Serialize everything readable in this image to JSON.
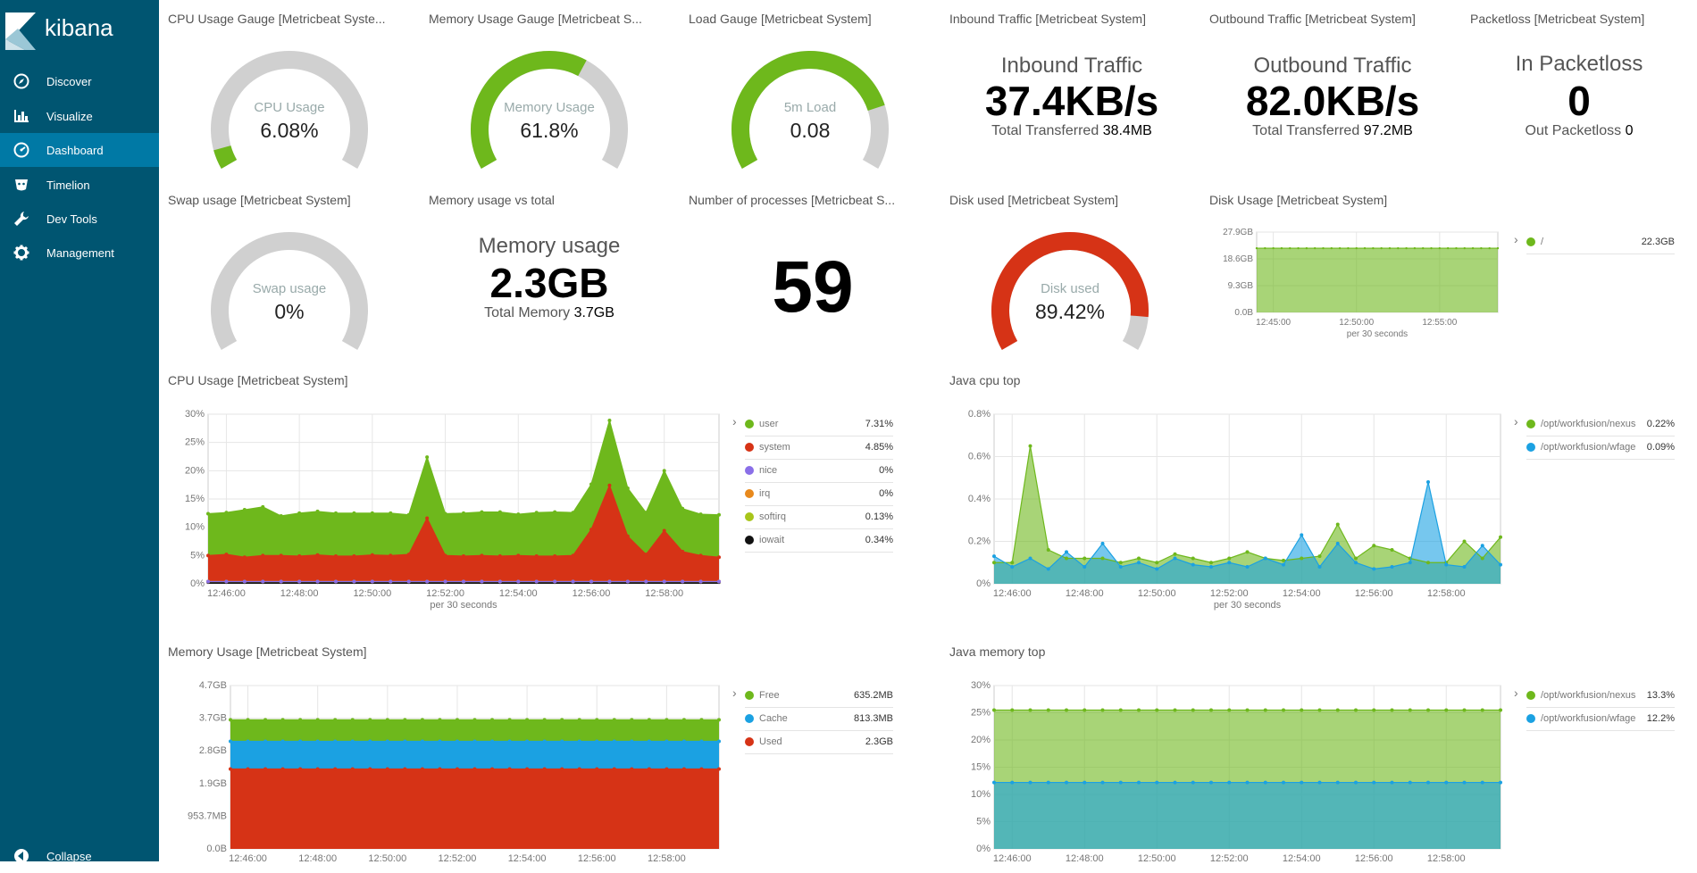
{
  "app": {
    "name": "kibana",
    "nav": [
      {
        "label": "Discover",
        "icon": "compass-icon",
        "active": false
      },
      {
        "label": "Visualize",
        "icon": "bar-chart-icon",
        "active": false
      },
      {
        "label": "Dashboard",
        "icon": "dashboard-icon",
        "active": true
      },
      {
        "label": "Timelion",
        "icon": "timelion-icon",
        "active": false
      },
      {
        "label": "Dev Tools",
        "icon": "wrench-icon",
        "active": false
      },
      {
        "label": "Management",
        "icon": "gear-icon",
        "active": false
      }
    ],
    "collapse_label": "Collapse",
    "colors": {
      "sidebar": "#005571",
      "active": "#0079a5",
      "green": "#6eb81c",
      "red": "#d63316",
      "blue": "#1ba1e2",
      "grey": "#d0d0d0"
    }
  },
  "panels": {
    "cpu_gauge": {
      "title": "CPU Usage Gauge [Metricbeat Syste...",
      "label": "CPU Usage",
      "value": "6.08%",
      "fraction": 0.0608,
      "color": "#6eb81c"
    },
    "mem_gauge": {
      "title": "Memory Usage Gauge [Metricbeat S...",
      "label": "Memory Usage",
      "value": "61.8%",
      "fraction": 0.618,
      "color": "#6eb81c"
    },
    "load_gauge": {
      "title": "Load Gauge [Metricbeat System]",
      "label": "5m Load",
      "value": "0.08",
      "fraction": 0.8,
      "color": "#6eb81c"
    },
    "inbound": {
      "title": "Inbound Traffic [Metricbeat System]",
      "label": "Inbound Traffic",
      "value": "37.4KB/s",
      "sub_label": "Total Transferred",
      "sub_value": "38.4MB"
    },
    "outbound": {
      "title": "Outbound Traffic [Metricbeat System]",
      "label": "Outbound Traffic",
      "value": "82.0KB/s",
      "sub_label": "Total Transferred",
      "sub_value": "97.2MB"
    },
    "packetloss": {
      "title": "Packetloss [Metricbeat System]",
      "label": "In Packetloss",
      "value": "0",
      "sub_label": "Out Packetloss",
      "sub_value": "0"
    },
    "swap_gauge": {
      "title": "Swap usage [Metricbeat System]",
      "label": "Swap usage",
      "value": "0%",
      "fraction": 0,
      "color": "#6eb81c"
    },
    "mem_total": {
      "title": "Memory usage vs total",
      "label": "Memory usage",
      "value": "2.3GB",
      "sub_label": "Total Memory",
      "sub_value": "3.7GB"
    },
    "processes": {
      "title": "Number of processes [Metricbeat S...",
      "value": "59"
    },
    "disk_gauge": {
      "title": "Disk used [Metricbeat System]",
      "label": "Disk used",
      "value": "89.42%",
      "fraction": 0.8942,
      "color": "#d63316"
    },
    "disk_usage": {
      "title": "Disk Usage [Metricbeat System]",
      "legend": [
        {
          "name": "/",
          "value": "22.3GB",
          "color": "#6eb81c"
        }
      ]
    },
    "cpu_usage": {
      "title": "CPU Usage [Metricbeat System]",
      "legend": [
        {
          "name": "user",
          "value": "7.31%",
          "color": "#6eb81c"
        },
        {
          "name": "system",
          "value": "4.85%",
          "color": "#d63316"
        },
        {
          "name": "nice",
          "value": "0%",
          "color": "#8a6fe8"
        },
        {
          "name": "irq",
          "value": "0%",
          "color": "#e8891c"
        },
        {
          "name": "softirq",
          "value": "0.13%",
          "color": "#a8c51a"
        },
        {
          "name": "iowait",
          "value": "0.34%",
          "color": "#111111"
        }
      ]
    },
    "java_cpu": {
      "title": "Java cpu top",
      "legend": [
        {
          "name": "/opt/workfusion/nexus",
          "value": "0.22%",
          "color": "#6eb81c"
        },
        {
          "name": "/opt/workfusion/wfage",
          "value": "0.09%",
          "color": "#1ba1e2"
        }
      ]
    },
    "memory_usage": {
      "title": "Memory Usage [Metricbeat System]",
      "legend": [
        {
          "name": "Free",
          "value": "635.2MB",
          "color": "#6eb81c"
        },
        {
          "name": "Cache",
          "value": "813.3MB",
          "color": "#1ba1e2"
        },
        {
          "name": "Used",
          "value": "2.3GB",
          "color": "#d63316"
        }
      ]
    },
    "java_mem": {
      "title": "Java memory top",
      "legend": [
        {
          "name": "/opt/workfusion/nexus",
          "value": "13.3%",
          "color": "#6eb81c"
        },
        {
          "name": "/opt/workfusion/wfage",
          "value": "12.2%",
          "color": "#1ba1e2"
        }
      ]
    }
  },
  "chart_data": [
    {
      "id": "disk",
      "type": "area",
      "x": [
        "12:44:00",
        "12:44:30",
        "12:45:00",
        "12:45:30",
        "12:46:00",
        "12:46:30",
        "12:47:00",
        "12:47:30",
        "12:48:00",
        "12:48:30",
        "12:49:00",
        "12:49:30",
        "12:50:00",
        "12:50:30",
        "12:51:00",
        "12:51:30",
        "12:52:00",
        "12:52:30",
        "12:53:00",
        "12:53:30",
        "12:54:00",
        "12:54:30",
        "12:55:00",
        "12:55:30",
        "12:56:00",
        "12:56:30",
        "12:57:00",
        "12:57:30",
        "12:58:00",
        "12:58:30"
      ],
      "xticks": [
        "12:45:00",
        "12:50:00",
        "12:55:00"
      ],
      "yticks": [
        "0.0B",
        "9.3GB",
        "18.6GB",
        "27.9GB"
      ],
      "ylim": [
        0,
        27.9
      ],
      "xlabel": "per 30 seconds",
      "series": [
        {
          "name": "/",
          "color": "#6eb81c",
          "values": [
            22.3,
            22.3,
            22.3,
            22.3,
            22.3,
            22.3,
            22.3,
            22.3,
            22.3,
            22.3,
            22.3,
            22.3,
            22.3,
            22.3,
            22.3,
            22.3,
            22.3,
            22.3,
            22.3,
            22.3,
            22.3,
            22.3,
            22.3,
            22.3,
            22.3,
            22.3,
            22.3,
            22.3,
            22.3,
            22.3
          ]
        }
      ]
    },
    {
      "id": "cpu",
      "type": "area",
      "stacked": true,
      "x": [
        "12:45:30",
        "12:46:00",
        "12:46:30",
        "12:47:00",
        "12:47:30",
        "12:48:00",
        "12:48:30",
        "12:49:00",
        "12:49:30",
        "12:50:00",
        "12:50:30",
        "12:51:00",
        "12:51:30",
        "12:52:00",
        "12:52:30",
        "12:53:00",
        "12:53:30",
        "12:54:00",
        "12:54:30",
        "12:55:00",
        "12:55:30",
        "12:56:00",
        "12:56:30",
        "12:57:00",
        "12:57:30",
        "12:58:00",
        "12:58:30",
        "12:59:00",
        "12:59:30"
      ],
      "xticks": [
        "12:46:00",
        "12:48:00",
        "12:50:00",
        "12:52:00",
        "12:54:00",
        "12:56:00",
        "12:58:00"
      ],
      "yticks": [
        "0%",
        "5%",
        "10%",
        "15%",
        "20%",
        "25%",
        "30%"
      ],
      "ylim": [
        0,
        30
      ],
      "xlabel": "per 30 seconds",
      "series": [
        {
          "name": "iowait",
          "color": "#111111",
          "values": [
            0.3,
            0.3,
            0.3,
            0.3,
            0.3,
            0.3,
            0.3,
            0.3,
            0.3,
            0.3,
            0.3,
            0.3,
            0.3,
            0.3,
            0.3,
            0.3,
            0.3,
            0.3,
            0.3,
            0.3,
            0.3,
            0.3,
            0.3,
            0.3,
            0.3,
            0.3,
            0.3,
            0.3,
            0.3
          ]
        },
        {
          "name": "softirq",
          "color": "#a8c51a",
          "values": [
            0.1,
            0.1,
            0.1,
            0.1,
            0.1,
            0.1,
            0.1,
            0.1,
            0.1,
            0.1,
            0.1,
            0.1,
            0.1,
            0.1,
            0.1,
            0.1,
            0.1,
            0.1,
            0.1,
            0.1,
            0.1,
            0.1,
            0.1,
            0.1,
            0.1,
            0.1,
            0.1,
            0.1,
            0.1
          ]
        },
        {
          "name": "irq",
          "color": "#e8891c",
          "values": [
            0,
            0,
            0,
            0,
            0,
            0,
            0,
            0,
            0,
            0,
            0,
            0,
            0,
            0,
            0,
            0,
            0,
            0,
            0,
            0,
            0,
            0,
            0,
            0,
            0,
            0,
            0,
            0,
            0
          ]
        },
        {
          "name": "nice",
          "color": "#8a6fe8",
          "values": [
            0,
            0,
            0,
            0,
            0,
            0,
            0,
            0,
            0,
            0,
            0,
            0,
            0,
            0,
            0,
            0,
            0,
            0,
            0,
            0,
            0,
            0,
            0,
            0,
            0,
            0,
            0,
            0,
            0
          ]
        },
        {
          "name": "system",
          "color": "#d63316",
          "values": [
            4.6,
            4.8,
            4.3,
            4.6,
            4.6,
            4.5,
            4.7,
            4.5,
            4.5,
            4.7,
            4.6,
            4.8,
            11.2,
            4.6,
            4.5,
            4.6,
            4.5,
            4.6,
            4.5,
            4.5,
            4.6,
            9.2,
            17.0,
            8.0,
            4.8,
            9.0,
            5.3,
            4.6,
            4.3
          ]
        },
        {
          "name": "user",
          "color": "#6eb81c",
          "values": [
            7.4,
            7.4,
            8.4,
            8.6,
            7.0,
            7.6,
            7.7,
            7.6,
            7.6,
            7.4,
            7.5,
            7.0,
            10.8,
            7.4,
            7.6,
            7.7,
            7.8,
            7.3,
            7.7,
            7.8,
            7.6,
            8.0,
            11.5,
            8.5,
            7.4,
            10.6,
            7.6,
            7.3,
            7.5
          ]
        }
      ]
    },
    {
      "id": "javacpu",
      "type": "area",
      "x": [
        "12:45:30",
        "12:46:00",
        "12:46:30",
        "12:47:00",
        "12:47:30",
        "12:48:00",
        "12:48:30",
        "12:49:00",
        "12:49:30",
        "12:50:00",
        "12:50:30",
        "12:51:00",
        "12:51:30",
        "12:52:00",
        "12:52:30",
        "12:53:00",
        "12:53:30",
        "12:54:00",
        "12:54:30",
        "12:55:00",
        "12:55:30",
        "12:56:00",
        "12:56:30",
        "12:57:00",
        "12:57:30",
        "12:58:00",
        "12:58:30",
        "12:59:00",
        "12:59:30"
      ],
      "xticks": [
        "12:46:00",
        "12:48:00",
        "12:50:00",
        "12:52:00",
        "12:54:00",
        "12:56:00",
        "12:58:00"
      ],
      "yticks": [
        "0%",
        "0.2%",
        "0.4%",
        "0.6%",
        "0.8%"
      ],
      "ylim": [
        0,
        0.8
      ],
      "xlabel": "per 30 seconds",
      "series": [
        {
          "name": "/opt/workfusion/nexus",
          "color": "#6eb81c",
          "values": [
            0.1,
            0.1,
            0.65,
            0.16,
            0.12,
            0.12,
            0.12,
            0.1,
            0.12,
            0.1,
            0.14,
            0.12,
            0.1,
            0.12,
            0.15,
            0.12,
            0.11,
            0.12,
            0.13,
            0.28,
            0.12,
            0.18,
            0.16,
            0.12,
            0.1,
            0.1,
            0.2,
            0.12,
            0.22
          ]
        },
        {
          "name": "/opt/workfusion/wfage",
          "color": "#1ba1e2",
          "values": [
            0.13,
            0.08,
            0.12,
            0.07,
            0.15,
            0.08,
            0.19,
            0.08,
            0.1,
            0.07,
            0.12,
            0.09,
            0.08,
            0.1,
            0.08,
            0.12,
            0.09,
            0.23,
            0.08,
            0.19,
            0.1,
            0.07,
            0.08,
            0.1,
            0.48,
            0.09,
            0.08,
            0.18,
            0.09
          ]
        }
      ]
    },
    {
      "id": "memory",
      "type": "area",
      "stacked": true,
      "x": [
        "12:45:30",
        "12:46:00",
        "12:46:30",
        "12:47:00",
        "12:47:30",
        "12:48:00",
        "12:48:30",
        "12:49:00",
        "12:49:30",
        "12:50:00",
        "12:50:30",
        "12:51:00",
        "12:51:30",
        "12:52:00",
        "12:52:30",
        "12:53:00",
        "12:53:30",
        "12:54:00",
        "12:54:30",
        "12:55:00",
        "12:55:30",
        "12:56:00",
        "12:56:30",
        "12:57:00",
        "12:57:30",
        "12:58:00",
        "12:58:30",
        "12:59:00",
        "12:59:30"
      ],
      "xticks": [
        "12:46:00",
        "12:48:00",
        "12:50:00",
        "12:52:00",
        "12:54:00",
        "12:56:00",
        "12:58:00"
      ],
      "yticks": [
        "0.0B",
        "953.7MB",
        "1.9GB",
        "2.8GB",
        "3.7GB",
        "4.7GB"
      ],
      "ylim": [
        0,
        4.7
      ],
      "series": [
        {
          "name": "Used",
          "color": "#d63316",
          "values": [
            2.3,
            2.3,
            2.3,
            2.3,
            2.3,
            2.3,
            2.3,
            2.3,
            2.3,
            2.3,
            2.3,
            2.3,
            2.3,
            2.3,
            2.3,
            2.3,
            2.3,
            2.3,
            2.3,
            2.3,
            2.3,
            2.3,
            2.3,
            2.3,
            2.3,
            2.3,
            2.3,
            2.3,
            2.3
          ]
        },
        {
          "name": "Cache",
          "color": "#1ba1e2",
          "values": [
            0.794,
            0.794,
            0.794,
            0.794,
            0.794,
            0.794,
            0.794,
            0.794,
            0.794,
            0.794,
            0.794,
            0.794,
            0.794,
            0.794,
            0.794,
            0.794,
            0.794,
            0.794,
            0.794,
            0.794,
            0.794,
            0.794,
            0.794,
            0.794,
            0.794,
            0.794,
            0.794,
            0.794,
            0.794
          ]
        },
        {
          "name": "Free",
          "color": "#6eb81c",
          "values": [
            0.62,
            0.62,
            0.62,
            0.62,
            0.62,
            0.62,
            0.62,
            0.62,
            0.62,
            0.62,
            0.62,
            0.62,
            0.62,
            0.62,
            0.62,
            0.62,
            0.62,
            0.62,
            0.62,
            0.62,
            0.62,
            0.62,
            0.62,
            0.62,
            0.62,
            0.62,
            0.62,
            0.62,
            0.62
          ]
        }
      ]
    },
    {
      "id": "javamem",
      "type": "area",
      "x": [
        "12:45:30",
        "12:46:00",
        "12:46:30",
        "12:47:00",
        "12:47:30",
        "12:48:00",
        "12:48:30",
        "12:49:00",
        "12:49:30",
        "12:50:00",
        "12:50:30",
        "12:51:00",
        "12:51:30",
        "12:52:00",
        "12:52:30",
        "12:53:00",
        "12:53:30",
        "12:54:00",
        "12:54:30",
        "12:55:00",
        "12:55:30",
        "12:56:00",
        "12:56:30",
        "12:57:00",
        "12:57:30",
        "12:58:00",
        "12:58:30",
        "12:59:00",
        "12:59:30"
      ],
      "xticks": [
        "12:46:00",
        "12:48:00",
        "12:50:00",
        "12:52:00",
        "12:54:00",
        "12:56:00",
        "12:58:00"
      ],
      "yticks": [
        "0%",
        "5%",
        "10%",
        "15%",
        "20%",
        "25%",
        "30%"
      ],
      "ylim": [
        0,
        30
      ],
      "series": [
        {
          "name": "/opt/workfusion/nexus",
          "color": "#6eb81c",
          "values": [
            25.5,
            25.5,
            25.5,
            25.5,
            25.5,
            25.5,
            25.5,
            25.5,
            25.5,
            25.5,
            25.5,
            25.5,
            25.5,
            25.5,
            25.5,
            25.5,
            25.5,
            25.5,
            25.5,
            25.5,
            25.5,
            25.5,
            25.5,
            25.5,
            25.5,
            25.5,
            25.5,
            25.5,
            25.5
          ]
        },
        {
          "name": "/opt/workfusion/wfage",
          "color": "#1ba1e2",
          "values": [
            12.2,
            12.2,
            12.2,
            12.2,
            12.2,
            12.2,
            12.2,
            12.2,
            12.2,
            12.2,
            12.2,
            12.2,
            12.2,
            12.2,
            12.2,
            12.2,
            12.2,
            12.2,
            12.2,
            12.2,
            12.2,
            12.2,
            12.2,
            12.2,
            12.2,
            12.2,
            12.2,
            12.2,
            12.2
          ]
        }
      ]
    }
  ]
}
